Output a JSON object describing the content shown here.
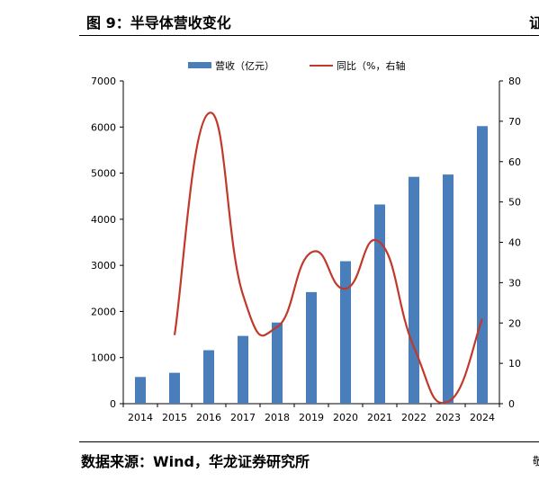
{
  "figure": {
    "title": "图 9：半导体营收变化",
    "title_cut": "证",
    "source": "数据来源：Wind，华龙证券研究所",
    "source_cut": "敬"
  },
  "chart_data": {
    "type": "bar",
    "title": "",
    "x": [
      "2014",
      "2015",
      "2016",
      "2017",
      "2018",
      "2019",
      "2020",
      "2021",
      "2022",
      "2023",
      "2024"
    ],
    "series": [
      {
        "name": "营收（亿元）",
        "type": "bar",
        "axis": "left",
        "color": "#4a7ebb",
        "values": [
          580,
          670,
          1160,
          1470,
          1760,
          2420,
          3090,
          4320,
          4920,
          4970,
          6020
        ]
      },
      {
        "name": "同比（%，右轴",
        "type": "line",
        "axis": "right",
        "color": "#c0392b",
        "values": [
          null,
          17,
          72,
          27,
          19,
          37.5,
          28.5,
          40,
          14,
          0.5,
          21
        ]
      }
    ],
    "y_left": {
      "min": 0,
      "max": 7000,
      "ticks": [
        0,
        1000,
        2000,
        3000,
        4000,
        5000,
        6000,
        7000
      ]
    },
    "y_right": {
      "min": 0,
      "max": 80,
      "ticks": [
        0,
        10,
        20,
        30,
        40,
        50,
        60,
        70,
        80
      ]
    },
    "grid": false,
    "legend": "top-center"
  }
}
